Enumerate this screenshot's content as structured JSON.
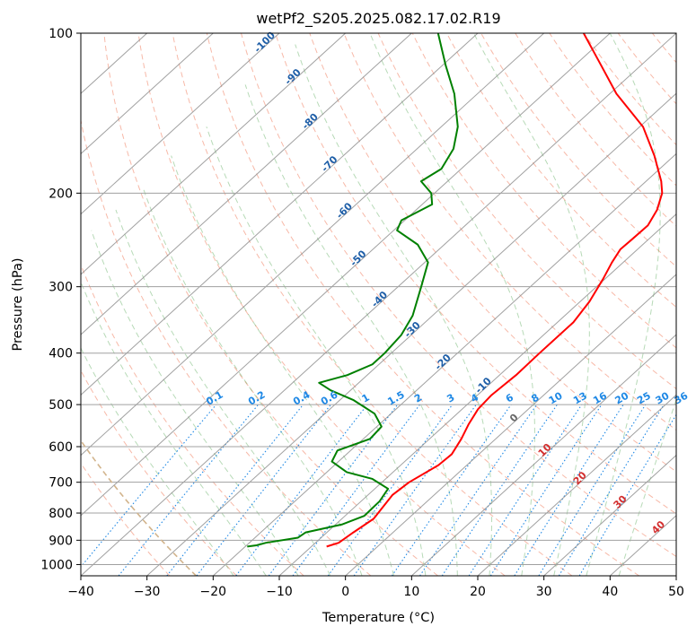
{
  "chart_data": {
    "type": "skew-t",
    "title": "wetPf2_S205.2025.082.17.02.R19",
    "xlabel": "Temperature (°C)",
    "ylabel": "Pressure (hPa)",
    "xlim": [
      -40,
      50
    ],
    "ylim": [
      1050,
      100
    ],
    "y_scale": "log",
    "grid": true,
    "x_ticks": [
      -40,
      -30,
      -20,
      -10,
      0,
      10,
      20,
      30,
      40,
      50
    ],
    "y_ticks": [
      100,
      200,
      300,
      400,
      500,
      600,
      700,
      800,
      900,
      1000
    ],
    "series": [
      {
        "color": "#ff0000",
        "points": [
          {
            "p": 925,
            "t": -7.7
          },
          {
            "p": 910,
            "t": -6.5
          },
          {
            "p": 870,
            "t": -6.0
          },
          {
            "p": 820,
            "t": -5.2
          },
          {
            "p": 790,
            "t": -5.6
          },
          {
            "p": 740,
            "t": -6.3
          },
          {
            "p": 700,
            "t": -5.9
          },
          {
            "p": 650,
            "t": -4.3
          },
          {
            "p": 620,
            "t": -4.1
          },
          {
            "p": 580,
            "t": -5.2
          },
          {
            "p": 545,
            "t": -6.5
          },
          {
            "p": 510,
            "t": -7.6
          },
          {
            "p": 480,
            "t": -7.9
          },
          {
            "p": 440,
            "t": -7.5
          },
          {
            "p": 400,
            "t": -7.6
          },
          {
            "p": 350,
            "t": -7.6
          },
          {
            "p": 320,
            "t": -8.6
          },
          {
            "p": 290,
            "t": -10.3
          },
          {
            "p": 270,
            "t": -11.7
          },
          {
            "p": 255,
            "t": -12.6
          },
          {
            "p": 245,
            "t": -12.5
          },
          {
            "p": 230,
            "t": -12.4
          },
          {
            "p": 215,
            "t": -13.6
          },
          {
            "p": 200,
            "t": -15.6
          },
          {
            "p": 190,
            "t": -17.7
          },
          {
            "p": 170,
            "t": -23.0
          },
          {
            "p": 150,
            "t": -29.5
          },
          {
            "p": 130,
            "t": -39.0
          },
          {
            "p": 115,
            "t": -46.0
          },
          {
            "p": 100,
            "t": -54.0
          }
        ]
      },
      {
        "color": "#008000",
        "points": [
          {
            "p": 925,
            "t": -19.7
          },
          {
            "p": 920,
            "t": -18.5
          },
          {
            "p": 910,
            "t": -17.5
          },
          {
            "p": 890,
            "t": -13.5
          },
          {
            "p": 870,
            "t": -13.2
          },
          {
            "p": 840,
            "t": -9.0
          },
          {
            "p": 810,
            "t": -7.1
          },
          {
            "p": 760,
            "t": -7.2
          },
          {
            "p": 720,
            "t": -8.0
          },
          {
            "p": 690,
            "t": -12.0
          },
          {
            "p": 670,
            "t": -17.0
          },
          {
            "p": 640,
            "t": -21.0
          },
          {
            "p": 610,
            "t": -22.0
          },
          {
            "p": 580,
            "t": -19.0
          },
          {
            "p": 550,
            "t": -19.3
          },
          {
            "p": 520,
            "t": -22.5
          },
          {
            "p": 490,
            "t": -28.0
          },
          {
            "p": 470,
            "t": -33.0
          },
          {
            "p": 455,
            "t": -36.0
          },
          {
            "p": 440,
            "t": -33.0
          },
          {
            "p": 420,
            "t": -31.0
          },
          {
            "p": 400,
            "t": -31.0
          },
          {
            "p": 370,
            "t": -31.5
          },
          {
            "p": 340,
            "t": -33.0
          },
          {
            "p": 300,
            "t": -36.5
          },
          {
            "p": 270,
            "t": -39.5
          },
          {
            "p": 250,
            "t": -44.0
          },
          {
            "p": 235,
            "t": -49.5
          },
          {
            "p": 225,
            "t": -50.5
          },
          {
            "p": 210,
            "t": -48.5
          },
          {
            "p": 200,
            "t": -50.5
          },
          {
            "p": 190,
            "t": -54.0
          },
          {
            "p": 180,
            "t": -53.0
          },
          {
            "p": 165,
            "t": -54.5
          },
          {
            "p": 150,
            "t": -57.5
          },
          {
            "p": 130,
            "t": -63.5
          },
          {
            "p": 115,
            "t": -69.5
          },
          {
            "p": 100,
            "t": -76.0
          }
        ]
      }
    ],
    "isotherm_labels": [
      -100,
      -90,
      -80,
      -70,
      -60,
      -50,
      -40,
      -30,
      -20,
      -10
    ],
    "mixing_ratio_labels": [
      "0.1",
      "0.2",
      "0.4",
      "0.6",
      "1",
      "1.5",
      "2",
      "3",
      "4",
      "6",
      "8",
      "10",
      "13",
      "16",
      "20",
      "25",
      "30",
      "36"
    ],
    "zero_isotherm_label": "0",
    "positive_isotherm_labels": [
      "10",
      "20",
      "30",
      "40"
    ]
  }
}
